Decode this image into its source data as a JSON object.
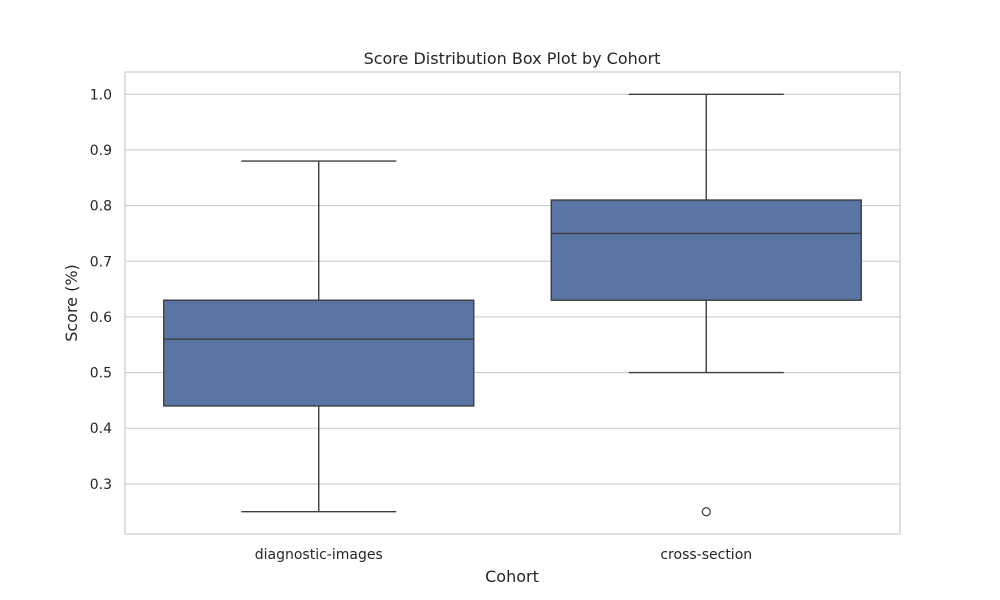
{
  "chart_data": {
    "type": "box",
    "title": "Score Distribution Box Plot by Cohort",
    "xlabel": "Cohort",
    "ylabel": "Score (%)",
    "categories": [
      "diagnostic-images",
      "cross-section"
    ],
    "ylim": [
      0.21,
      1.04
    ],
    "yticks": [
      0.3,
      0.4,
      0.5,
      0.6,
      0.7,
      0.8,
      0.9,
      1.0
    ],
    "ytick_labels": [
      "0.3",
      "0.4",
      "0.5",
      "0.6",
      "0.7",
      "0.8",
      "0.9",
      "1.0"
    ],
    "grid": true,
    "colors": {
      "box_fill": "#5875a4",
      "box_edge": "#3d3d3d",
      "grid": "#cccccc",
      "frame": "#cccccc"
    },
    "boxes": [
      {
        "category": "diagnostic-images",
        "whisker_low": 0.25,
        "q1": 0.44,
        "median": 0.56,
        "q3": 0.63,
        "whisker_high": 0.88,
        "outliers": []
      },
      {
        "category": "cross-section",
        "whisker_low": 0.5,
        "q1": 0.63,
        "median": 0.75,
        "q3": 0.81,
        "whisker_high": 1.0,
        "outliers": [
          0.25
        ]
      }
    ]
  }
}
